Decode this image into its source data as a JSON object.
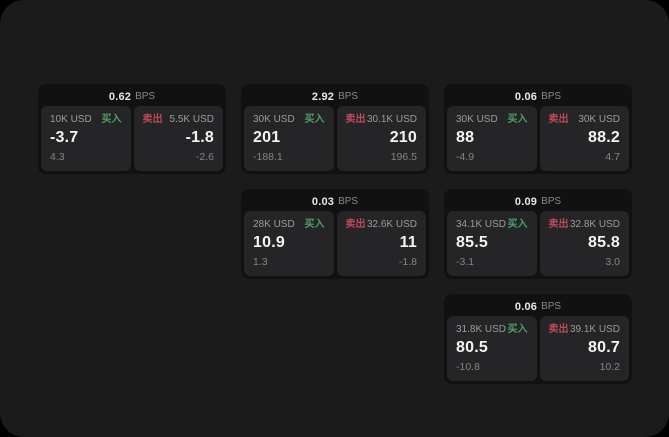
{
  "labels": {
    "buy": "买入",
    "sell": "卖出",
    "bps": "BPS"
  },
  "colors": {
    "buy": "#4f9e66",
    "sell": "#bb4a59",
    "window-bg": "#1b1b1c",
    "card-bg": "#111112",
    "panel-bg": "#252527"
  },
  "cards": [
    {
      "bps": "0.62",
      "buy": {
        "size": "10K USD",
        "price": "-3.7",
        "delta": "4.3"
      },
      "sell": {
        "size": "5.5K USD",
        "price": "-1.8",
        "delta": "-2.6"
      }
    },
    {
      "bps": "2.92",
      "buy": {
        "size": "30K USD",
        "price": "201",
        "delta": "-188.1"
      },
      "sell": {
        "size": "30.1K USD",
        "price": "210",
        "delta": "196.5"
      }
    },
    {
      "bps": "0.06",
      "buy": {
        "size": "30K USD",
        "price": "88",
        "delta": "-4.9"
      },
      "sell": {
        "size": "30K USD",
        "price": "88.2",
        "delta": "4.7"
      }
    },
    {
      "bps": "0.03",
      "buy": {
        "size": "28K USD",
        "price": "10.9",
        "delta": "1.3"
      },
      "sell": {
        "size": "32.6K USD",
        "price": "11",
        "delta": "-1.8"
      }
    },
    {
      "bps": "0.09",
      "buy": {
        "size": "34.1K USD",
        "price": "85.5",
        "delta": "-3.1"
      },
      "sell": {
        "size": "32.8K USD",
        "price": "85.8",
        "delta": "3.0"
      }
    },
    {
      "bps": "0.06",
      "buy": {
        "size": "31.8K USD",
        "price": "80.5",
        "delta": "-10.8"
      },
      "sell": {
        "size": "39.1K USD",
        "price": "80.7",
        "delta": "10.2"
      }
    }
  ]
}
